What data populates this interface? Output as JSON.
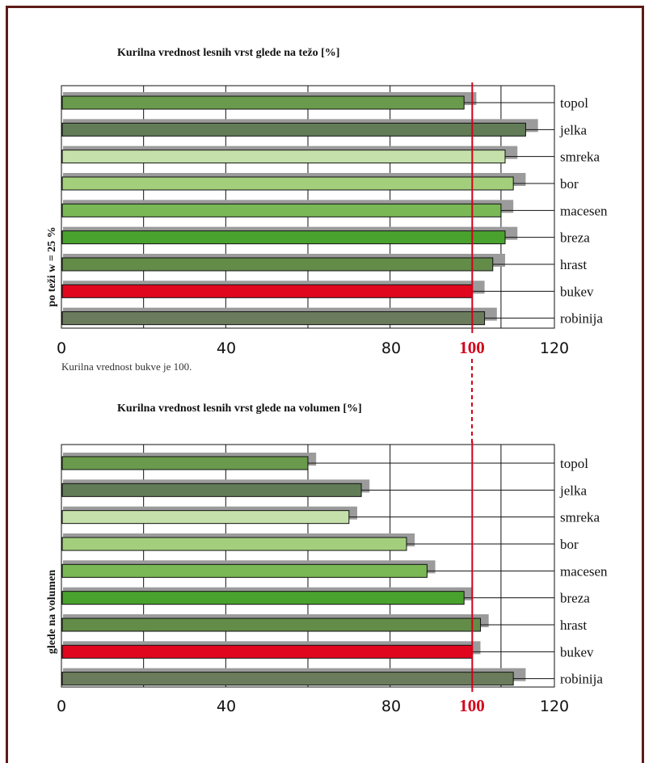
{
  "colors": {
    "frame": "#5e1a1a",
    "shadow": "#9b9b9b",
    "reference_line": "#d4001a",
    "bars": [
      "#6a9a4c",
      "#617c56",
      "#c5e0aa",
      "#a3cf7d",
      "#7ab856",
      "#4aa22e",
      "#638c49",
      "#e0061e",
      "#6b7c5c"
    ]
  },
  "chart_data": [
    {
      "type": "bar",
      "orientation": "horizontal",
      "title": "Kurilna vrednost lesnih vrst glede na težo [%]",
      "ylabel": "po teži  w = 25 %",
      "categories": [
        "topol",
        "jelka",
        "smreka",
        "bor",
        "macesen",
        "breza",
        "hrast",
        "bukev",
        "robinija"
      ],
      "values": [
        98,
        113,
        108,
        110,
        107,
        108,
        105,
        100,
        103
      ],
      "shadow_values": [
        101,
        116,
        111,
        113,
        110,
        111,
        108,
        103,
        106
      ],
      "xlim": [
        0,
        120
      ],
      "ticks": [
        "0",
        "40",
        "80",
        "100",
        "120"
      ],
      "reference_value": 100,
      "grid": true,
      "note": "Kurilna vrednost bukve je 100."
    },
    {
      "type": "bar",
      "orientation": "horizontal",
      "title": "Kurilna vrednost lesnih vrst glede na volumen [%]",
      "ylabel": "glede na volumen",
      "categories": [
        "topol",
        "jelka",
        "smreka",
        "bor",
        "macesen",
        "breza",
        "hrast",
        "bukev",
        "robinija"
      ],
      "values": [
        60,
        73,
        70,
        84,
        89,
        98,
        102,
        100,
        110
      ],
      "shadow_values": [
        62,
        75,
        72,
        86,
        91,
        100,
        104,
        102,
        113
      ],
      "xlim": [
        0,
        120
      ],
      "ticks": [
        "0",
        "40",
        "80",
        "100",
        "120"
      ],
      "reference_value": 100,
      "grid": true
    }
  ]
}
